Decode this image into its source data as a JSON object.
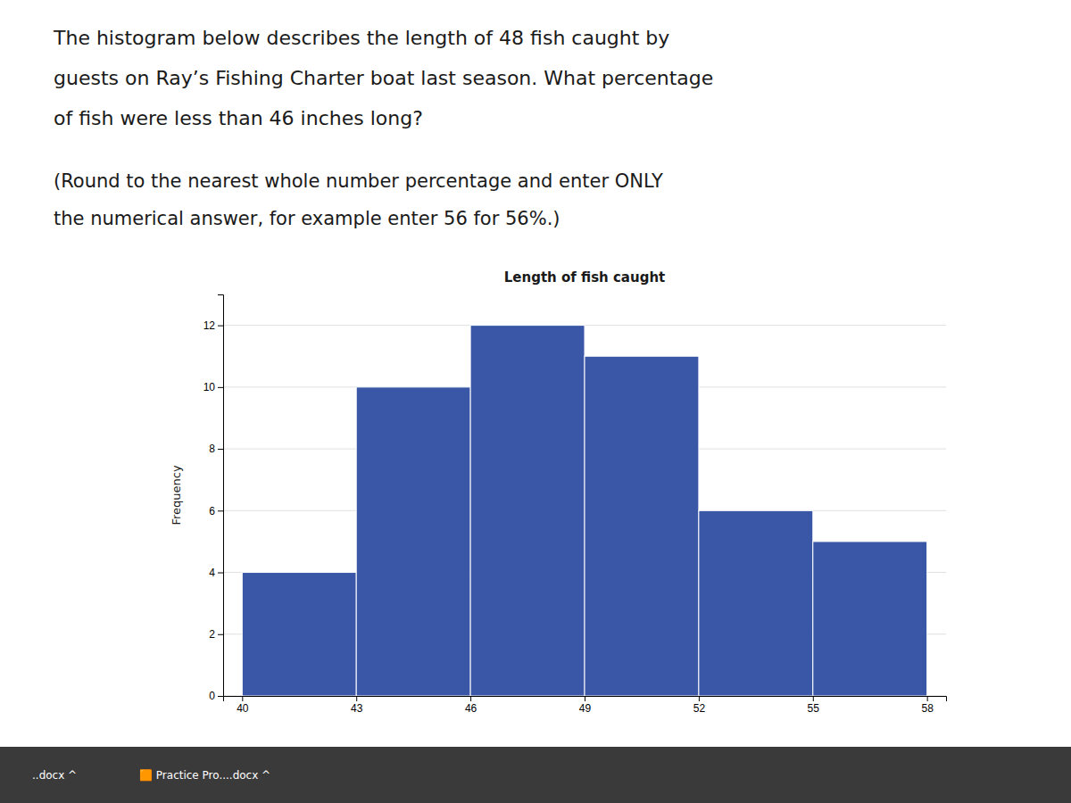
{
  "chart_data": {
    "type": "histogram",
    "title": "Length of fish caught",
    "ylabel": "Frequency",
    "annotations": [
      "The histogram below describes the length of 48 fish caught by",
      "guests on Ray’s Fishing Charter boat last season. What percentage",
      "of fish were less than 46 inches long?",
      "(Round to the nearest whole number percentage and enter ONLY",
      "the numerical answer, for example enter 56 for 56%.)",
      "..docx  ^",
      "🟧  Practice Pro....docx   ^"
    ],
    "bins": [
      40,
      43,
      46,
      49,
      52,
      55,
      58
    ],
    "values": [
      4,
      10,
      12,
      11,
      6,
      5
    ],
    "color": "#3a57a7",
    "xlim": [
      39.5,
      58.5
    ],
    "xticks": [
      40,
      43,
      46,
      49,
      52,
      55,
      58
    ],
    "ylim": [
      0,
      13
    ],
    "yticks": [
      0,
      2,
      4,
      6,
      8,
      10,
      12
    ],
    "grid": true
  }
}
